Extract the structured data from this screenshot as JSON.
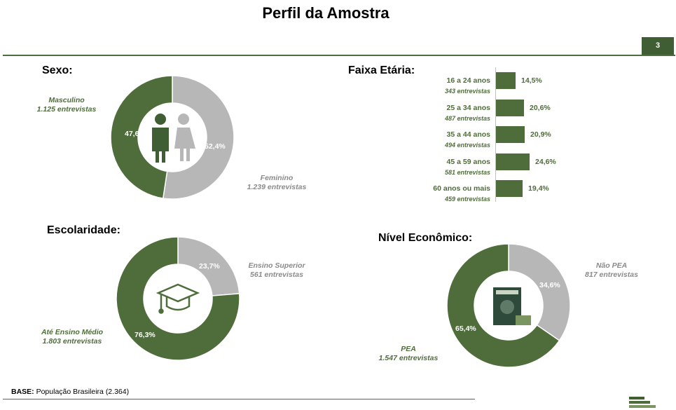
{
  "page": {
    "title": "Perfil da Amostra",
    "page_number": "3"
  },
  "base": {
    "label": "BASE:",
    "text": "População Brasileira (2.364)"
  },
  "colors": {
    "green": "#4f6d3a",
    "gray": "#b7b7b7",
    "dark_green": "#3f5e33"
  },
  "chart_data": [
    {
      "type": "pie",
      "title": "Sexo:",
      "icon": "male-female-icon",
      "slices": [
        {
          "label": "Masculino",
          "count": "1.125 entrevistas",
          "value": 47.6,
          "pct_label": "47,6%",
          "color": "#4f6d3a"
        },
        {
          "label": "Feminino",
          "count": "1.239 entrevistas",
          "value": 52.4,
          "pct_label": "52,4%",
          "color": "#b7b7b7"
        }
      ]
    },
    {
      "type": "bar",
      "title": "Faixa Etária:",
      "categories": [
        "16 a 24 anos",
        "25 a 34 anos",
        "35 a 44 anos",
        "45 a 59 anos",
        "60 anos ou mais"
      ],
      "counts": [
        "343 entrevistas",
        "487 entrevistas",
        "494 entrevistas",
        "581 entrevistas",
        "459 entrevistas"
      ],
      "values": [
        14.5,
        20.6,
        20.9,
        24.6,
        19.4
      ],
      "value_labels": [
        "14,5%",
        "20,6%",
        "20,9%",
        "24,6%",
        "19,4%"
      ]
    },
    {
      "type": "pie",
      "title": "Escolaridade:",
      "icon": "graduation-cap-icon",
      "slices": [
        {
          "label": "Ensino Superior",
          "count": "561 entrevistas",
          "value": 23.7,
          "pct_label": "23,7%",
          "color": "#b7b7b7"
        },
        {
          "label": "Até Ensino Médio",
          "count": "1.803 entrevistas",
          "value": 76.3,
          "pct_label": "76,3%",
          "color": "#4f6d3a"
        }
      ]
    },
    {
      "type": "pie",
      "title": "Nível Econômico:",
      "icon": "work-card-icon",
      "slices": [
        {
          "label": "Não PEA",
          "count": "817 entrevistas",
          "value": 34.6,
          "pct_label": "34,6%",
          "color": "#b7b7b7"
        },
        {
          "label": "PEA",
          "count": "1.547 entrevistas",
          "value": 65.4,
          "pct_label": "65,4%",
          "color": "#4f6d3a"
        }
      ]
    }
  ]
}
